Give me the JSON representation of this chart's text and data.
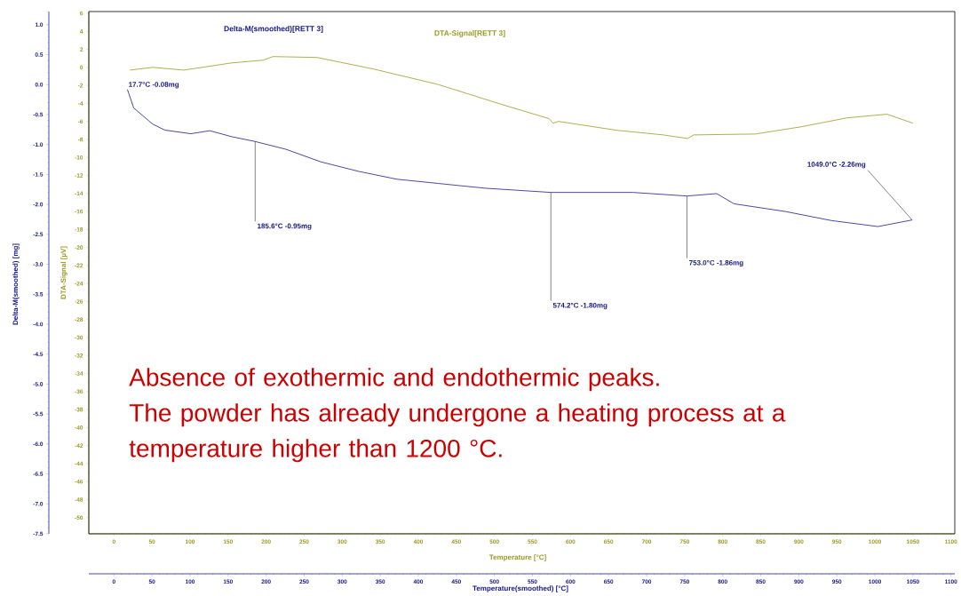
{
  "chart_data": {
    "type": "line",
    "xlabel": "Temperature [°C]",
    "x2label": "Temperature(smoothed) [°C]",
    "ylabel": "Delta-M(smoothed) [mg]",
    "y2label": "DTA-Signal [µV]",
    "xlim": [
      -33,
      1105
    ],
    "xticks": [
      0,
      50,
      100,
      150,
      200,
      250,
      300,
      350,
      400,
      450,
      500,
      550,
      600,
      650,
      700,
      750,
      800,
      850,
      900,
      950,
      1000,
      1050,
      1100
    ],
    "x2lim": [
      -33,
      1105
    ],
    "x2ticks": [
      0,
      50,
      100,
      150,
      200,
      250,
      300,
      350,
      400,
      450,
      500,
      550,
      600,
      650,
      700,
      750,
      800,
      850,
      900,
      950,
      1000,
      1050,
      1100
    ],
    "ylim": [
      -7.5,
      1.22
    ],
    "yticks": [
      {
        "value": -7.5,
        "label": "-7.5"
      },
      {
        "value": -7,
        "label": "-7.0"
      },
      {
        "value": -6.5,
        "label": "-6.5"
      },
      {
        "value": -6,
        "label": "-6.0"
      },
      {
        "value": -5.5,
        "label": "-5.5"
      },
      {
        "value": -5,
        "label": "-5.0"
      },
      {
        "value": -4.5,
        "label": "-4.5"
      },
      {
        "value": -4,
        "label": "-4.0"
      },
      {
        "value": -3.5,
        "label": "-3.5"
      },
      {
        "value": -3,
        "label": "-3.0"
      },
      {
        "value": -2.5,
        "label": "-2.5"
      },
      {
        "value": -2,
        "label": "-2.0"
      },
      {
        "value": -1.5,
        "label": "-1.5"
      },
      {
        "value": -1,
        "label": "-1.0"
      },
      {
        "value": -0.5,
        "label": "-0.5"
      },
      {
        "value": 0,
        "label": "0.0"
      },
      {
        "value": 0.5,
        "label": "0.5"
      },
      {
        "value": 1,
        "label": "1.0"
      }
    ],
    "y2lim": [
      -51.8,
      6.2
    ],
    "y2ticks": [
      -50,
      -48,
      -46,
      -44,
      -42,
      -40,
      -38,
      -36,
      -34,
      -32,
      -30,
      -28,
      -26,
      -24,
      -22,
      -20,
      -18,
      -16,
      -14,
      -12,
      -10,
      -8,
      -6,
      -4,
      -2,
      0,
      2,
      4,
      6
    ],
    "series": [
      {
        "name": "Delta-M(smoothed)[RETT 3]",
        "color": "#1c1c8c",
        "x": [
          17.7,
          26,
          51,
          67,
          101,
          126,
          155,
          185.6,
          226,
          272,
          322,
          372,
          426,
          488,
          574.2,
          682,
          753,
          792,
          815,
          883,
          943,
          1004,
          1049
        ],
        "values": [
          -0.08,
          -0.39,
          -0.66,
          -0.76,
          -0.82,
          -0.77,
          -0.87,
          -0.95,
          -1.08,
          -1.29,
          -1.45,
          -1.58,
          -1.65,
          -1.73,
          -1.8,
          -1.8,
          -1.86,
          -1.82,
          -1.99,
          -2.12,
          -2.27,
          -2.37,
          -2.26
        ]
      },
      {
        "name": "DTA-Signal[RETT 3]",
        "color": "#9a9a24",
        "axis": "y2",
        "x": [
          21,
          51,
          92,
          155,
          196,
          209,
          267,
          342,
          426,
          509,
          572,
          577,
          584,
          662,
          722,
          754,
          762,
          843,
          903,
          964,
          1016,
          1050
        ],
        "values": [
          -0.3,
          0,
          -0.3,
          0.5,
          0.8,
          1.2,
          1.1,
          -0.2,
          -1.9,
          -4.1,
          -5.7,
          -6.2,
          -6.0,
          -7.0,
          -7.5,
          -7.9,
          -7.5,
          -7.4,
          -6.6,
          -5.6,
          -5.2,
          -6.2
        ]
      }
    ],
    "annotations": [
      {
        "text": "17.7°C  -0.08mg",
        "x": 17.7,
        "y": -0.08
      },
      {
        "text": "185.6°C  -0.95mg",
        "x": 185.6,
        "y": -0.95
      },
      {
        "text": "574.2°C  -1.80mg",
        "x": 574.2,
        "y": -1.8
      },
      {
        "text": "753.0°C  -1.86mg",
        "x": 753.0,
        "y": -1.86
      },
      {
        "text": "1049.0°C  -2.26mg",
        "x": 1049.0,
        "y": -2.26
      },
      "Absence of exothermic and endothermic peaks.",
      "The powder has already undergone a heating process at a temperature higher than 1200 °C."
    ]
  }
}
